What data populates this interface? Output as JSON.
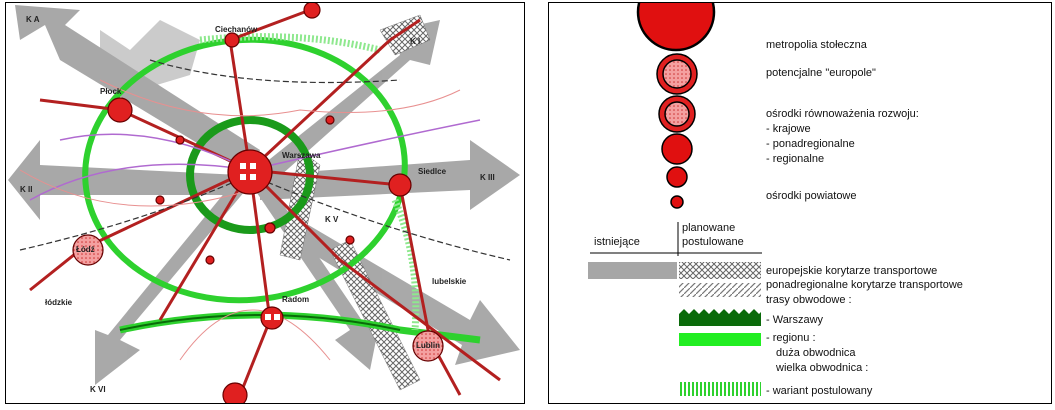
{
  "map": {
    "labels": [
      "K A",
      "K I",
      "K II",
      "K III",
      "K V",
      "K VI",
      "Łódź",
      "Lublin",
      "Warszawa",
      "Radom",
      "Siedlce",
      "Płock",
      "Ciechanów",
      "łódzkie",
      "lubelskie"
    ]
  },
  "legend": {
    "centers": {
      "capital": "metropolia stołeczna",
      "europoles": "potencjalne \"europole\"",
      "balancing": "ośrodki równoważenia rozwoju:",
      "national": "- krajowe",
      "supraregional": "- ponadregionalne",
      "regional": "- regionalne",
      "county": "ośrodki powiatowe"
    },
    "columns": {
      "existing": "istniejące",
      "planned": "planowane",
      "postulated": "postulowane"
    },
    "corridors": {
      "european": "europejskie korytarze transportowe",
      "supraregional": "ponadregionalne korytarze transportowe",
      "ring_routes": "trasy obwodowe :",
      "warsaw": "- Warszawy",
      "region": "- regionu :",
      "large_ring": "duża obwodnica",
      "great_ring": "wielka obwodnica :",
      "postulated_variant": "- wariant postulowany"
    }
  }
}
